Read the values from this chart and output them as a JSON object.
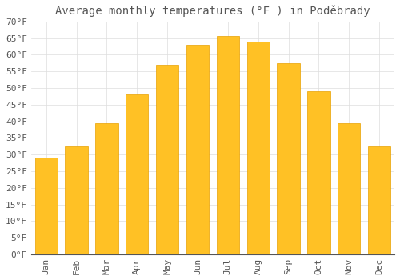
{
  "title": "Average monthly temperatures (°F ) in Poděbrady",
  "months": [
    "Jan",
    "Feb",
    "Mar",
    "Apr",
    "May",
    "Jun",
    "Jul",
    "Aug",
    "Sep",
    "Oct",
    "Nov",
    "Dec"
  ],
  "values": [
    29,
    32.5,
    39.5,
    48,
    57,
    63,
    65.5,
    64,
    57.5,
    49,
    39.5,
    32.5
  ],
  "bar_color": "#FFC125",
  "bar_edge_color": "#E8A000",
  "background_color": "#FFFFFF",
  "grid_color": "#DDDDDD",
  "text_color": "#555555",
  "ylim": [
    0,
    70
  ],
  "yticks": [
    0,
    5,
    10,
    15,
    20,
    25,
    30,
    35,
    40,
    45,
    50,
    55,
    60,
    65,
    70
  ],
  "title_fontsize": 10,
  "tick_fontsize": 8
}
